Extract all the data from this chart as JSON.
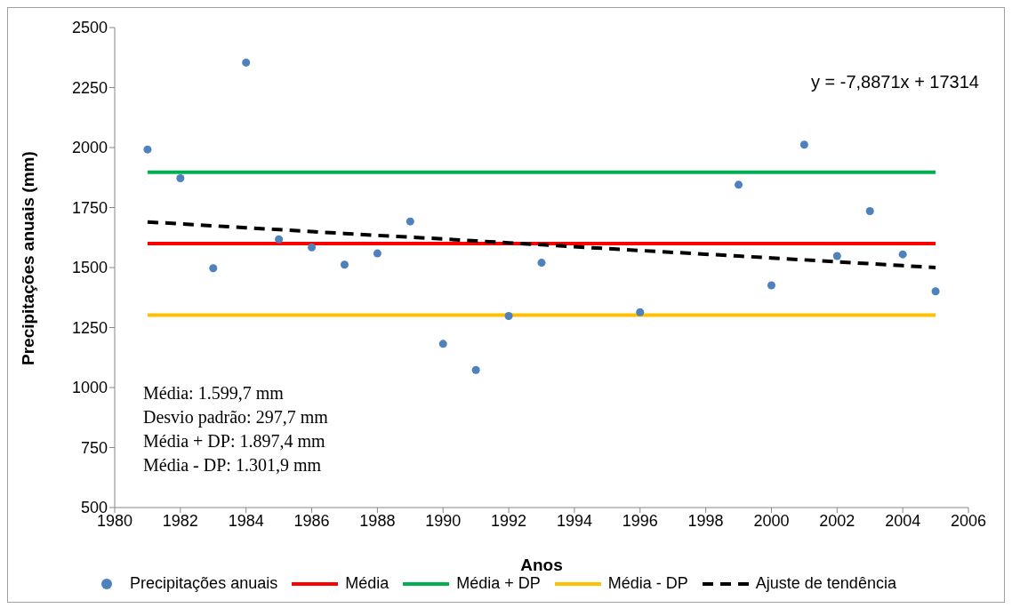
{
  "chart_data": {
    "type": "scatter",
    "xlabel": "Anos",
    "ylabel": "Precipitações anuais (mm)",
    "x": [
      1981,
      1982,
      1983,
      1984,
      1985,
      1986,
      1987,
      1988,
      1989,
      1990,
      1991,
      1992,
      1993,
      1996,
      1999,
      2000,
      2001,
      2002,
      2003,
      2004,
      2005
    ],
    "series": [
      {
        "name": "Precipitações anuais",
        "marker": "circle",
        "color": "#4f81bd",
        "values": [
          1992,
          1872,
          1497,
          2354,
          1618,
          1584,
          1512,
          1559,
          1692,
          1182,
          1073,
          1298,
          1520,
          1314,
          1845,
          1426,
          2012,
          1548,
          1735,
          1555,
          1401
        ]
      },
      {
        "name": "Média",
        "type": "line",
        "line_style": "solid",
        "color": "#ff0000",
        "values": [
          1599.7,
          1599.7,
          1599.7,
          1599.7,
          1599.7,
          1599.7,
          1599.7,
          1599.7,
          1599.7,
          1599.7,
          1599.7,
          1599.7,
          1599.7,
          1599.7,
          1599.7,
          1599.7,
          1599.7,
          1599.7,
          1599.7,
          1599.7,
          1599.7
        ]
      },
      {
        "name": "Média + DP",
        "type": "line",
        "line_style": "solid",
        "color": "#00b050",
        "values": [
          1897.4,
          1897.4,
          1897.4,
          1897.4,
          1897.4,
          1897.4,
          1897.4,
          1897.4,
          1897.4,
          1897.4,
          1897.4,
          1897.4,
          1897.4,
          1897.4,
          1897.4,
          1897.4,
          1897.4,
          1897.4,
          1897.4,
          1897.4,
          1897.4
        ]
      },
      {
        "name": "Média - DP",
        "type": "line",
        "line_style": "solid",
        "color": "#ffc000",
        "values": [
          1301.9,
          1301.9,
          1301.9,
          1301.9,
          1301.9,
          1301.9,
          1301.9,
          1301.9,
          1301.9,
          1301.9,
          1301.9,
          1301.9,
          1301.9,
          1301.9,
          1301.9,
          1301.9,
          1301.9,
          1301.9,
          1301.9,
          1301.9,
          1301.9
        ]
      },
      {
        "name": "Ajuste de tendência",
        "type": "line",
        "line_style": "dashed",
        "color": "#000000",
        "values": [
          1690,
          1682,
          1674,
          1666,
          1658,
          1650,
          1642,
          1634,
          1627,
          1619,
          1611,
          1603,
          1595,
          1571,
          1548,
          1540,
          1532,
          1524,
          1516,
          1508,
          1500
        ]
      }
    ],
    "xlim": [
      1980,
      2006
    ],
    "xticks": [
      1980,
      1982,
      1984,
      1986,
      1988,
      1990,
      1992,
      1994,
      1996,
      1998,
      2000,
      2002,
      2004,
      2006
    ],
    "ylim": [
      500,
      2500
    ],
    "yticks": [
      500,
      750,
      1000,
      1250,
      1500,
      1750,
      2000,
      2250,
      2500
    ],
    "legend": "bottom",
    "annotations": [
      "y = -7,8871x + 17314",
      "Média: 1.599,7 mm",
      "Desvio padrão: 297,7 mm",
      "Média + DP: 1.897,4 mm",
      "Média - DP: 1.301,9 mm"
    ]
  }
}
